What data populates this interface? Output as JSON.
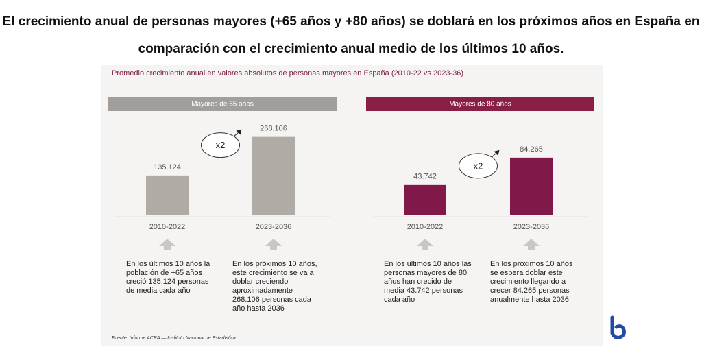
{
  "title": "El crecimiento anual de personas mayores (+65 años y +80 años) se doblará en los próximos años en España en comparación con el crecimiento anual medio de los últimos 10 años.",
  "subtitle": "Promedio crecimiento anual en valores absolutos de personas mayores en España (2010-22 vs 2023-36)",
  "source": "Fuente: Informe ACRA — Instituto Nacional de Estadística",
  "chart_data": [
    {
      "type": "bar",
      "title": "Mayores de 65 años",
      "header_color": "#a19e9b",
      "color": "#b1aba5",
      "categories": [
        "2010-2022",
        "2023-2036"
      ],
      "values": [
        135124,
        268106
      ],
      "value_labels": [
        "135.124",
        "268.106"
      ],
      "ylim": [
        0,
        350000
      ],
      "annotation": "x2",
      "notes": [
        "En los últimos 10 años la población de +65 años creció 135.124 personas de media cada año",
        "En los próximos 10 años, este crecimiento se va a doblar creciendo aproximadamente 268.106 personas cada año hasta 2036"
      ]
    },
    {
      "type": "bar",
      "title": "Mayores de 80 años",
      "header_color": "#8a1f46",
      "color": "#80194a",
      "categories": [
        "2010-2022",
        "2023-2036"
      ],
      "values": [
        43742,
        84265
      ],
      "value_labels": [
        "43.742",
        "84.265"
      ],
      "ylim": [
        0,
        150000
      ],
      "annotation": "x2",
      "notes": [
        "En los últimos 10 años las personas mayores de 80 años han crecido de media 43.742 personas cada año",
        "En los próximos 10 años se espera doblar este crecimiento llegando a crecer 84.265 personas anualmente hasta 2036"
      ]
    }
  ]
}
